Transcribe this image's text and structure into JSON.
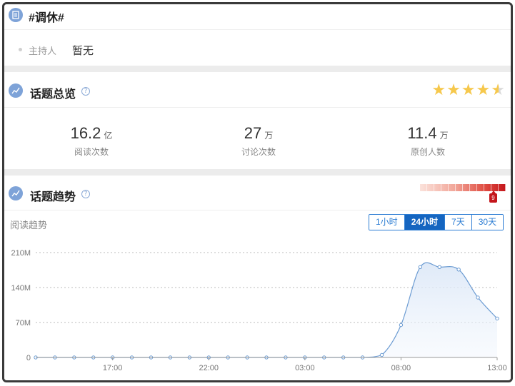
{
  "topic": {
    "title": "#调休#",
    "host_label": "主持人",
    "host_value": "暂无"
  },
  "overview": {
    "title": "话题总览",
    "rating": 4.5,
    "stats": [
      {
        "value": "16.2",
        "unit": "亿",
        "label": "阅读次数"
      },
      {
        "value": "27",
        "unit": "万",
        "label": "讨论次数"
      },
      {
        "value": "11.4",
        "unit": "万",
        "label": "原创人数"
      }
    ]
  },
  "trend": {
    "title": "话题趋势",
    "heat_level": "9",
    "chart_label": "阅读趋势",
    "ranges": [
      "1小时",
      "24小时",
      "7天",
      "30天"
    ],
    "active_range": "24小时"
  },
  "colors": {
    "accent": "#1565c0",
    "line": "#6b9bd2",
    "star": "#f6c84c",
    "heat": "#c4161c"
  },
  "icons": {
    "topic": "document-icon",
    "overview": "chart-icon",
    "trend": "chart-icon",
    "help": "question-icon"
  },
  "chart_data": {
    "type": "area",
    "title": "",
    "xlabel": "",
    "ylabel": "",
    "x_tick_labels": [
      "17:00",
      "22:00",
      "03:00",
      "08:00",
      "13:00"
    ],
    "y_tick_labels": [
      "0",
      "70M",
      "140M",
      "210M"
    ],
    "ylim": [
      0,
      210
    ],
    "y_unit": "M",
    "grid": "horizontal-dotted",
    "series": [
      {
        "values": [
          0,
          0,
          0,
          0,
          0,
          0,
          0,
          0,
          0,
          0,
          0,
          0,
          0,
          0,
          0,
          0,
          0,
          0,
          5,
          65,
          181,
          181,
          176,
          120,
          78
        ]
      }
    ]
  }
}
